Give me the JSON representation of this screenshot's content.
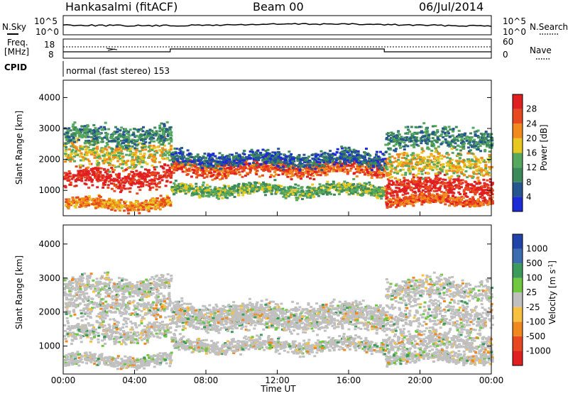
{
  "header": {
    "station": "Hankasalmi (fitACF)",
    "beam": "Beam 00",
    "date": "06/Jul/2014"
  },
  "noise_panel": {
    "left_label": "N.Sky",
    "right_label": "N.Search",
    "left_ticks": [
      "10^5",
      "10^0"
    ],
    "right_ticks": [
      "10^5",
      "10^0"
    ]
  },
  "freq_panel": {
    "left_label_1": "Freq.",
    "left_label_2": "[MHz]",
    "right_label": "Nave",
    "left_ticks": [
      "18",
      "8"
    ],
    "right_ticks": [
      "60",
      "0"
    ]
  },
  "cpid": {
    "label": "CPID",
    "text": "normal (fast stereo) 153",
    "changes_at_hours": [
      6,
      18
    ]
  },
  "chart_data": [
    {
      "type": "heatmap",
      "name": "power",
      "ylabel": "Slant Range [km]",
      "ylim": [
        180,
        4560
      ],
      "yticks": [
        1000,
        2000,
        3000,
        4000
      ],
      "xlim": [
        0,
        24
      ],
      "colorbar": {
        "label": "Power [dB]",
        "ticks": [
          "4",
          "8",
          "12",
          "16",
          "20",
          "24",
          "28"
        ],
        "colors": [
          "#1c2bd6",
          "#26558f",
          "#3c8a5a",
          "#57a85f",
          "#e8c820",
          "#f08a1c",
          "#e84a20",
          "#e02020"
        ]
      },
      "scatter_bands": [
        {
          "t0": 0,
          "t1": 6,
          "center": 1450,
          "width": 320,
          "level": 7
        },
        {
          "t0": 0,
          "t1": 6,
          "center": 2200,
          "width": 420,
          "level": 4
        },
        {
          "t0": 0,
          "t1": 6,
          "center": 2800,
          "width": 300,
          "level": 2
        },
        {
          "t0": 0,
          "t1": 6,
          "center": 600,
          "width": 180,
          "level": 5
        },
        {
          "t0": 6,
          "t1": 18,
          "center": 1750,
          "width": 260,
          "level": 6
        },
        {
          "t0": 6,
          "t1": 18,
          "center": 2050,
          "width": 250,
          "level": 1
        },
        {
          "t0": 6,
          "t1": 18,
          "center": 1050,
          "width": 200,
          "level": 3
        },
        {
          "t0": 18,
          "t1": 24,
          "center": 1150,
          "width": 320,
          "level": 7
        },
        {
          "t0": 18,
          "t1": 24,
          "center": 1900,
          "width": 450,
          "level": 4
        },
        {
          "t0": 18,
          "t1": 24,
          "center": 2700,
          "width": 350,
          "level": 2
        },
        {
          "t0": 18,
          "t1": 24,
          "center": 700,
          "width": 150,
          "level": 6
        }
      ]
    },
    {
      "type": "heatmap",
      "name": "velocity",
      "ylabel": "Slant Range [km]",
      "ylim": [
        180,
        4560
      ],
      "yticks": [
        1000,
        2000,
        3000,
        4000
      ],
      "xlim": [
        0,
        24
      ],
      "xlabel": "Time UT",
      "xticks": [
        "00:00",
        "04:00",
        "08:00",
        "12:00",
        "16:00",
        "20:00",
        "00:00"
      ],
      "colorbar": {
        "label": "Velocity [m s^-1]",
        "ticks": [
          "1000",
          "500",
          "100",
          "25",
          "-25",
          "-100",
          "-500",
          "-1000"
        ],
        "colors": [
          "#2244aa",
          "#3b6db0",
          "#3c9a5a",
          "#70c840",
          "#c0c0c0",
          "#f8c040",
          "#f08820",
          "#e84820",
          "#e02020"
        ]
      }
    }
  ]
}
